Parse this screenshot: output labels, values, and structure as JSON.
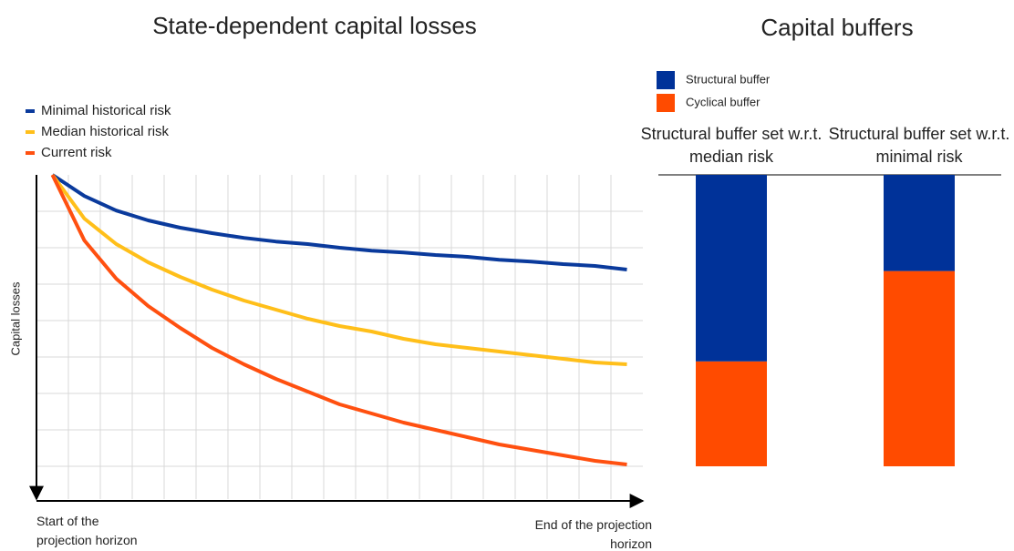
{
  "chart_data": [
    {
      "type": "line",
      "title": "State-dependent capital losses",
      "ylabel": "Capital losses",
      "x_start_label": "Start of the projection horizon",
      "x_end_label": "End of the projection horizon",
      "x": [
        0,
        1,
        2,
        3,
        4,
        5,
        6,
        7,
        8,
        9,
        10,
        11,
        12,
        13,
        14,
        15,
        16,
        17,
        18
      ],
      "xlim": [
        -0.5,
        18.5
      ],
      "xticks": [
        0.5,
        1.5,
        2.5,
        3.5,
        4.5,
        5.5,
        6.5,
        7.5,
        8.5,
        9.5,
        10.5,
        11.5,
        12.5,
        13.5,
        14.5,
        15.5,
        16.5,
        17.5
      ],
      "ylim": [
        0,
        8.9
      ],
      "yticks": [
        1,
        2,
        3,
        4,
        5,
        6,
        7,
        8
      ],
      "y_direction": "down",
      "grid": true,
      "series": [
        {
          "name": "Minimal historical risk",
          "color": "#0a3a9c",
          "values": [
            0,
            0.58,
            0.98,
            1.25,
            1.45,
            1.6,
            1.73,
            1.83,
            1.9,
            2.0,
            2.08,
            2.13,
            2.2,
            2.25,
            2.33,
            2.38,
            2.45,
            2.5,
            2.6
          ]
        },
        {
          "name": "Median historical risk",
          "color": "#ffbf1a",
          "values": [
            0,
            1.2,
            1.9,
            2.4,
            2.8,
            3.15,
            3.45,
            3.7,
            3.95,
            4.15,
            4.3,
            4.5,
            4.65,
            4.75,
            4.85,
            4.95,
            5.05,
            5.15,
            5.2
          ]
        },
        {
          "name": "Current risk",
          "color": "#ff5010",
          "values": [
            0,
            1.8,
            2.85,
            3.6,
            4.2,
            4.75,
            5.2,
            5.6,
            5.95,
            6.3,
            6.55,
            6.8,
            7.0,
            7.2,
            7.4,
            7.55,
            7.7,
            7.85,
            7.95
          ]
        }
      ]
    },
    {
      "type": "stacked_bar",
      "title": "Capital buffers",
      "categories": [
        "Structural buffer set w.r.t. median risk",
        "Structural buffer set w.r.t. minimal risk"
      ],
      "ylim": [
        0,
        100
      ],
      "series": [
        {
          "name": "Cyclical buffer",
          "color": "#ff4b00",
          "values": [
            36,
            67
          ]
        },
        {
          "name": "Structural buffer",
          "color": "#003299",
          "values": [
            64,
            33
          ]
        }
      ]
    }
  ]
}
